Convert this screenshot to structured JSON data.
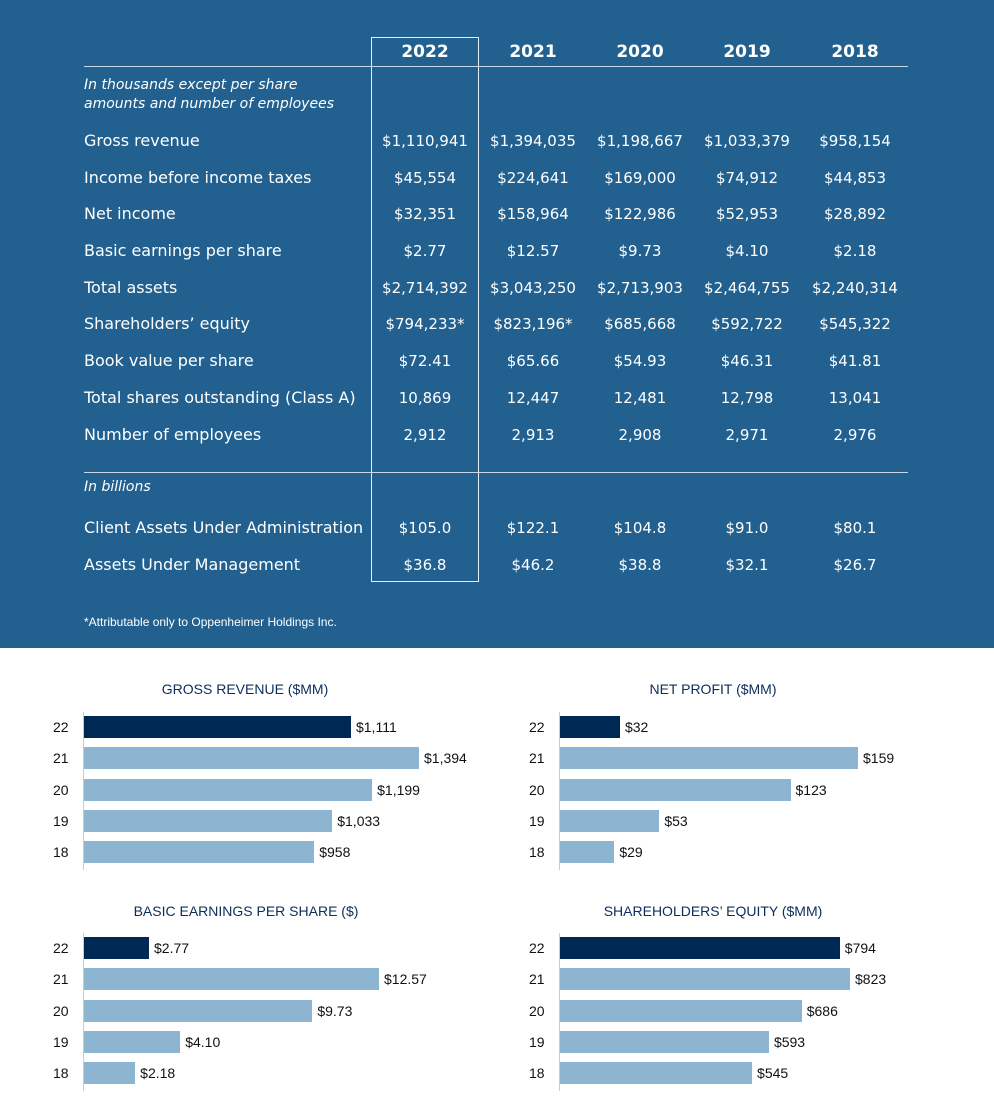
{
  "table": {
    "years": [
      "2022",
      "2021",
      "2020",
      "2019",
      "2018"
    ],
    "highlight_year": "2022",
    "note_top": [
      "In thousands except per share",
      "amounts and number of employees"
    ],
    "rows": [
      {
        "label": "Gross revenue",
        "values": [
          "$1,110,941",
          "$1,394,035",
          "$1,198,667",
          "$1,033,379",
          "$958,154"
        ]
      },
      {
        "label": "Income before income taxes",
        "values": [
          "$45,554",
          "$224,641",
          "$169,000",
          "$74,912",
          "$44,853"
        ]
      },
      {
        "label": "Net income",
        "values": [
          "$32,351",
          "$158,964",
          "$122,986",
          "$52,953",
          "$28,892"
        ]
      },
      {
        "label": "Basic earnings per share",
        "values": [
          "$2.77",
          "$12.57",
          "$9.73",
          "$4.10",
          "$2.18"
        ]
      },
      {
        "label": "Total assets",
        "values": [
          "$2,714,392",
          "$3,043,250",
          "$2,713,903",
          "$2,464,755",
          "$2,240,314"
        ]
      },
      {
        "label": "Shareholders’ equity",
        "values": [
          "$794,233*",
          "$823,196*",
          "$685,668",
          "$592,722",
          "$545,322"
        ]
      },
      {
        "label": "Book value per share",
        "values": [
          "$72.41",
          "$65.66",
          "$54.93",
          "$46.31",
          "$41.81"
        ]
      },
      {
        "label": "Total shares outstanding (Class A)",
        "values": [
          "10,869",
          "12,447",
          "12,481",
          "12,798",
          "13,041"
        ]
      },
      {
        "label": "Number of employees",
        "values": [
          "2,912",
          "2,913",
          "2,908",
          "2,971",
          "2,976"
        ]
      }
    ],
    "note_billions": "In billions",
    "rows_billions": [
      {
        "label": "Client Assets Under Administration",
        "values": [
          "$105.0",
          "$122.1",
          "$104.8",
          "$91.0",
          "$80.1"
        ]
      },
      {
        "label": "Assets Under Management",
        "values": [
          "$36.8",
          "$46.2",
          "$38.8",
          "$32.1",
          "$26.7"
        ]
      }
    ],
    "footnote": "*Attributable only to Oppenheimer Holdings Inc."
  },
  "colors": {
    "panel": "#21608f",
    "current_bar": "#002855",
    "prior_bar": "#8db4d0"
  },
  "chart_data": [
    {
      "type": "bar",
      "orientation": "horizontal",
      "title": "GROSS REVENUE ($MM)",
      "categories": [
        "22",
        "21",
        "20",
        "19",
        "18"
      ],
      "values": [
        1111,
        1394,
        1199,
        1033,
        958
      ],
      "labels": [
        "$1,111",
        "$1,394",
        "$1,199",
        "$1,033",
        "$958"
      ]
    },
    {
      "type": "bar",
      "orientation": "horizontal",
      "title": "NET PROFIT ($MM)",
      "categories": [
        "22",
        "21",
        "20",
        "19",
        "18"
      ],
      "values": [
        32,
        159,
        123,
        53,
        29
      ],
      "labels": [
        "$32",
        "$159",
        "$123",
        "$53",
        "$29"
      ]
    },
    {
      "type": "bar",
      "orientation": "horizontal",
      "title": "BASIC EARNINGS PER SHARE ($)",
      "categories": [
        "22",
        "21",
        "20",
        "19",
        "18"
      ],
      "values": [
        2.77,
        12.57,
        9.73,
        4.1,
        2.18
      ],
      "labels": [
        "$2.77",
        "$12.57",
        "$9.73",
        "$4.10",
        "$2.18"
      ]
    },
    {
      "type": "bar",
      "orientation": "horizontal",
      "title": "SHAREHOLDERS’ EQUITY ($MM)",
      "categories": [
        "22",
        "21",
        "20",
        "19",
        "18"
      ],
      "values": [
        794,
        823,
        686,
        593,
        545
      ],
      "labels": [
        "$794",
        "$823",
        "$686",
        "$593",
        "$545"
      ]
    }
  ]
}
